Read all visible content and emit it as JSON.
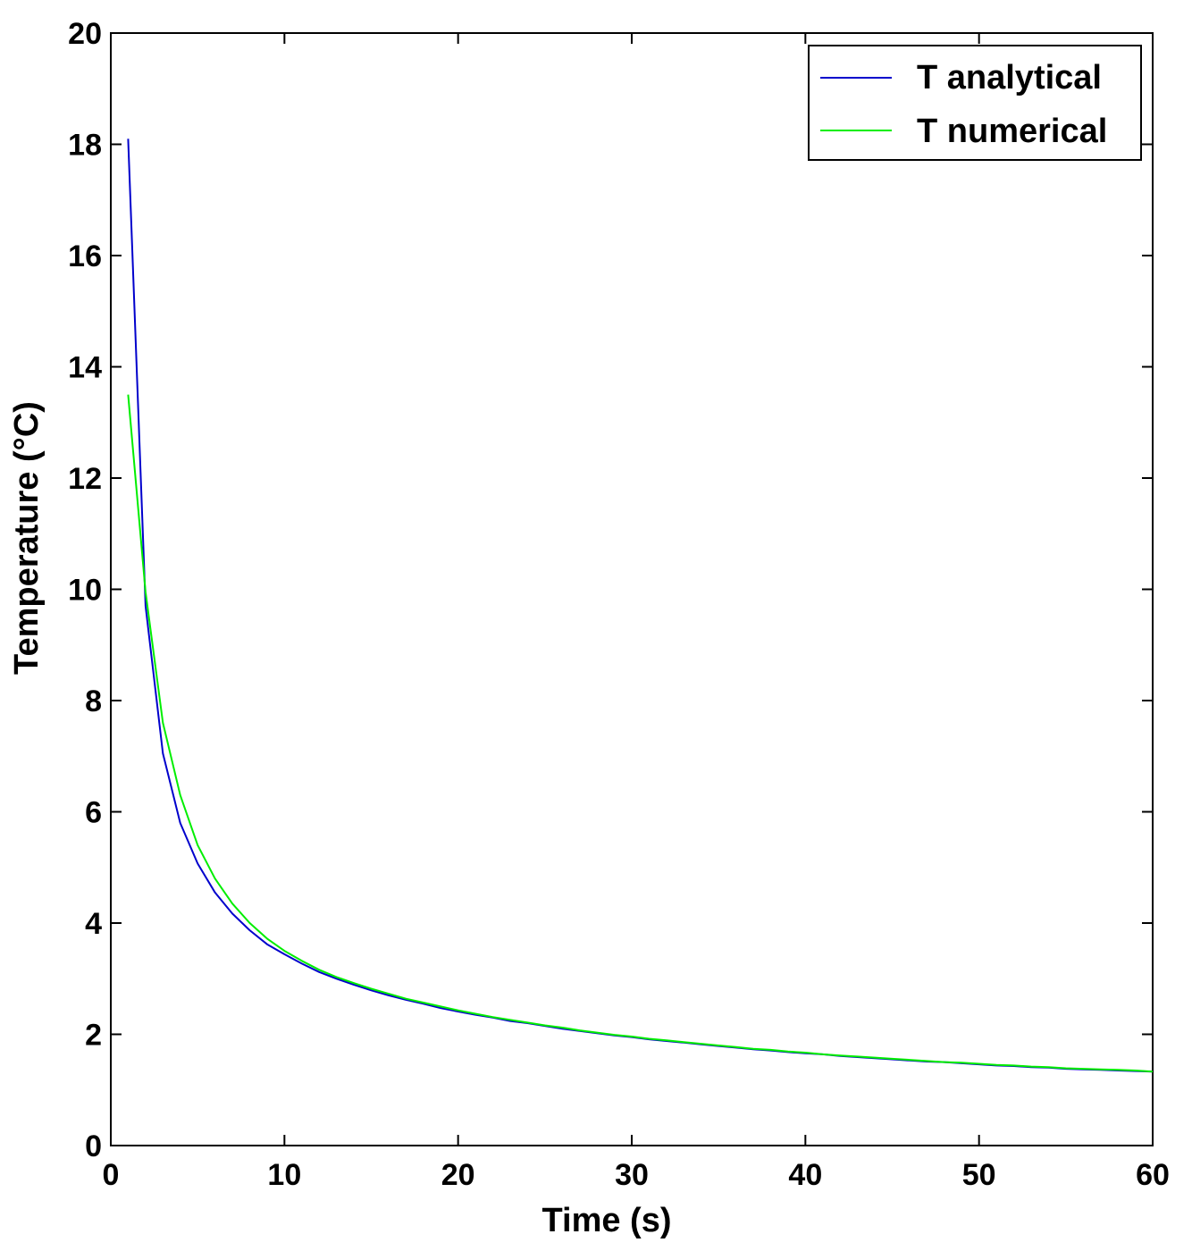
{
  "chart_data": {
    "type": "line",
    "title": "",
    "xlabel": "Time (s)",
    "ylabel": "Temperature (°C)",
    "xlim": [
      0,
      60
    ],
    "ylim": [
      0,
      20
    ],
    "xticks": [
      "0",
      "10",
      "20",
      "30",
      "40",
      "50",
      "60"
    ],
    "yticks": [
      "0",
      "2",
      "4",
      "6",
      "8",
      "10",
      "12",
      "14",
      "16",
      "18",
      "20"
    ],
    "grid": false,
    "legend_position": "top-right",
    "x": [
      1,
      2,
      3,
      4,
      5,
      6,
      7,
      8,
      9,
      10,
      11,
      12,
      13,
      14,
      15,
      16,
      17,
      18,
      19,
      20,
      21,
      22,
      23,
      24,
      25,
      26,
      27,
      28,
      29,
      30,
      31,
      32,
      33,
      34,
      35,
      36,
      37,
      38,
      39,
      40,
      41,
      42,
      43,
      44,
      45,
      46,
      47,
      48,
      49,
      50,
      51,
      52,
      53,
      54,
      55,
      56,
      57,
      58,
      59,
      60
    ],
    "series": [
      {
        "name": "T analytical",
        "color": "#0000cc",
        "values": [
          18.1,
          9.7,
          7.05,
          5.8,
          5.07,
          4.55,
          4.17,
          3.87,
          3.62,
          3.44,
          3.27,
          3.12,
          3.0,
          2.89,
          2.79,
          2.7,
          2.62,
          2.55,
          2.47,
          2.41,
          2.35,
          2.3,
          2.24,
          2.2,
          2.15,
          2.1,
          2.06,
          2.02,
          1.98,
          1.95,
          1.91,
          1.88,
          1.85,
          1.82,
          1.79,
          1.76,
          1.73,
          1.71,
          1.68,
          1.66,
          1.64,
          1.61,
          1.59,
          1.57,
          1.55,
          1.53,
          1.51,
          1.5,
          1.48,
          1.46,
          1.44,
          1.43,
          1.41,
          1.4,
          1.38,
          1.37,
          1.36,
          1.35,
          1.34,
          1.33
        ]
      },
      {
        "name": "T numerical",
        "color": "#00ee00",
        "values": [
          13.5,
          9.95,
          7.6,
          6.3,
          5.4,
          4.8,
          4.35,
          4.0,
          3.72,
          3.5,
          3.32,
          3.16,
          3.03,
          2.92,
          2.82,
          2.73,
          2.64,
          2.57,
          2.5,
          2.43,
          2.37,
          2.31,
          2.26,
          2.21,
          2.16,
          2.12,
          2.07,
          2.03,
          1.99,
          1.96,
          1.92,
          1.89,
          1.86,
          1.83,
          1.8,
          1.77,
          1.74,
          1.72,
          1.69,
          1.67,
          1.64,
          1.62,
          1.6,
          1.58,
          1.56,
          1.54,
          1.52,
          1.5,
          1.49,
          1.47,
          1.45,
          1.44,
          1.42,
          1.41,
          1.39,
          1.38,
          1.37,
          1.36,
          1.35,
          1.33
        ]
      }
    ]
  }
}
